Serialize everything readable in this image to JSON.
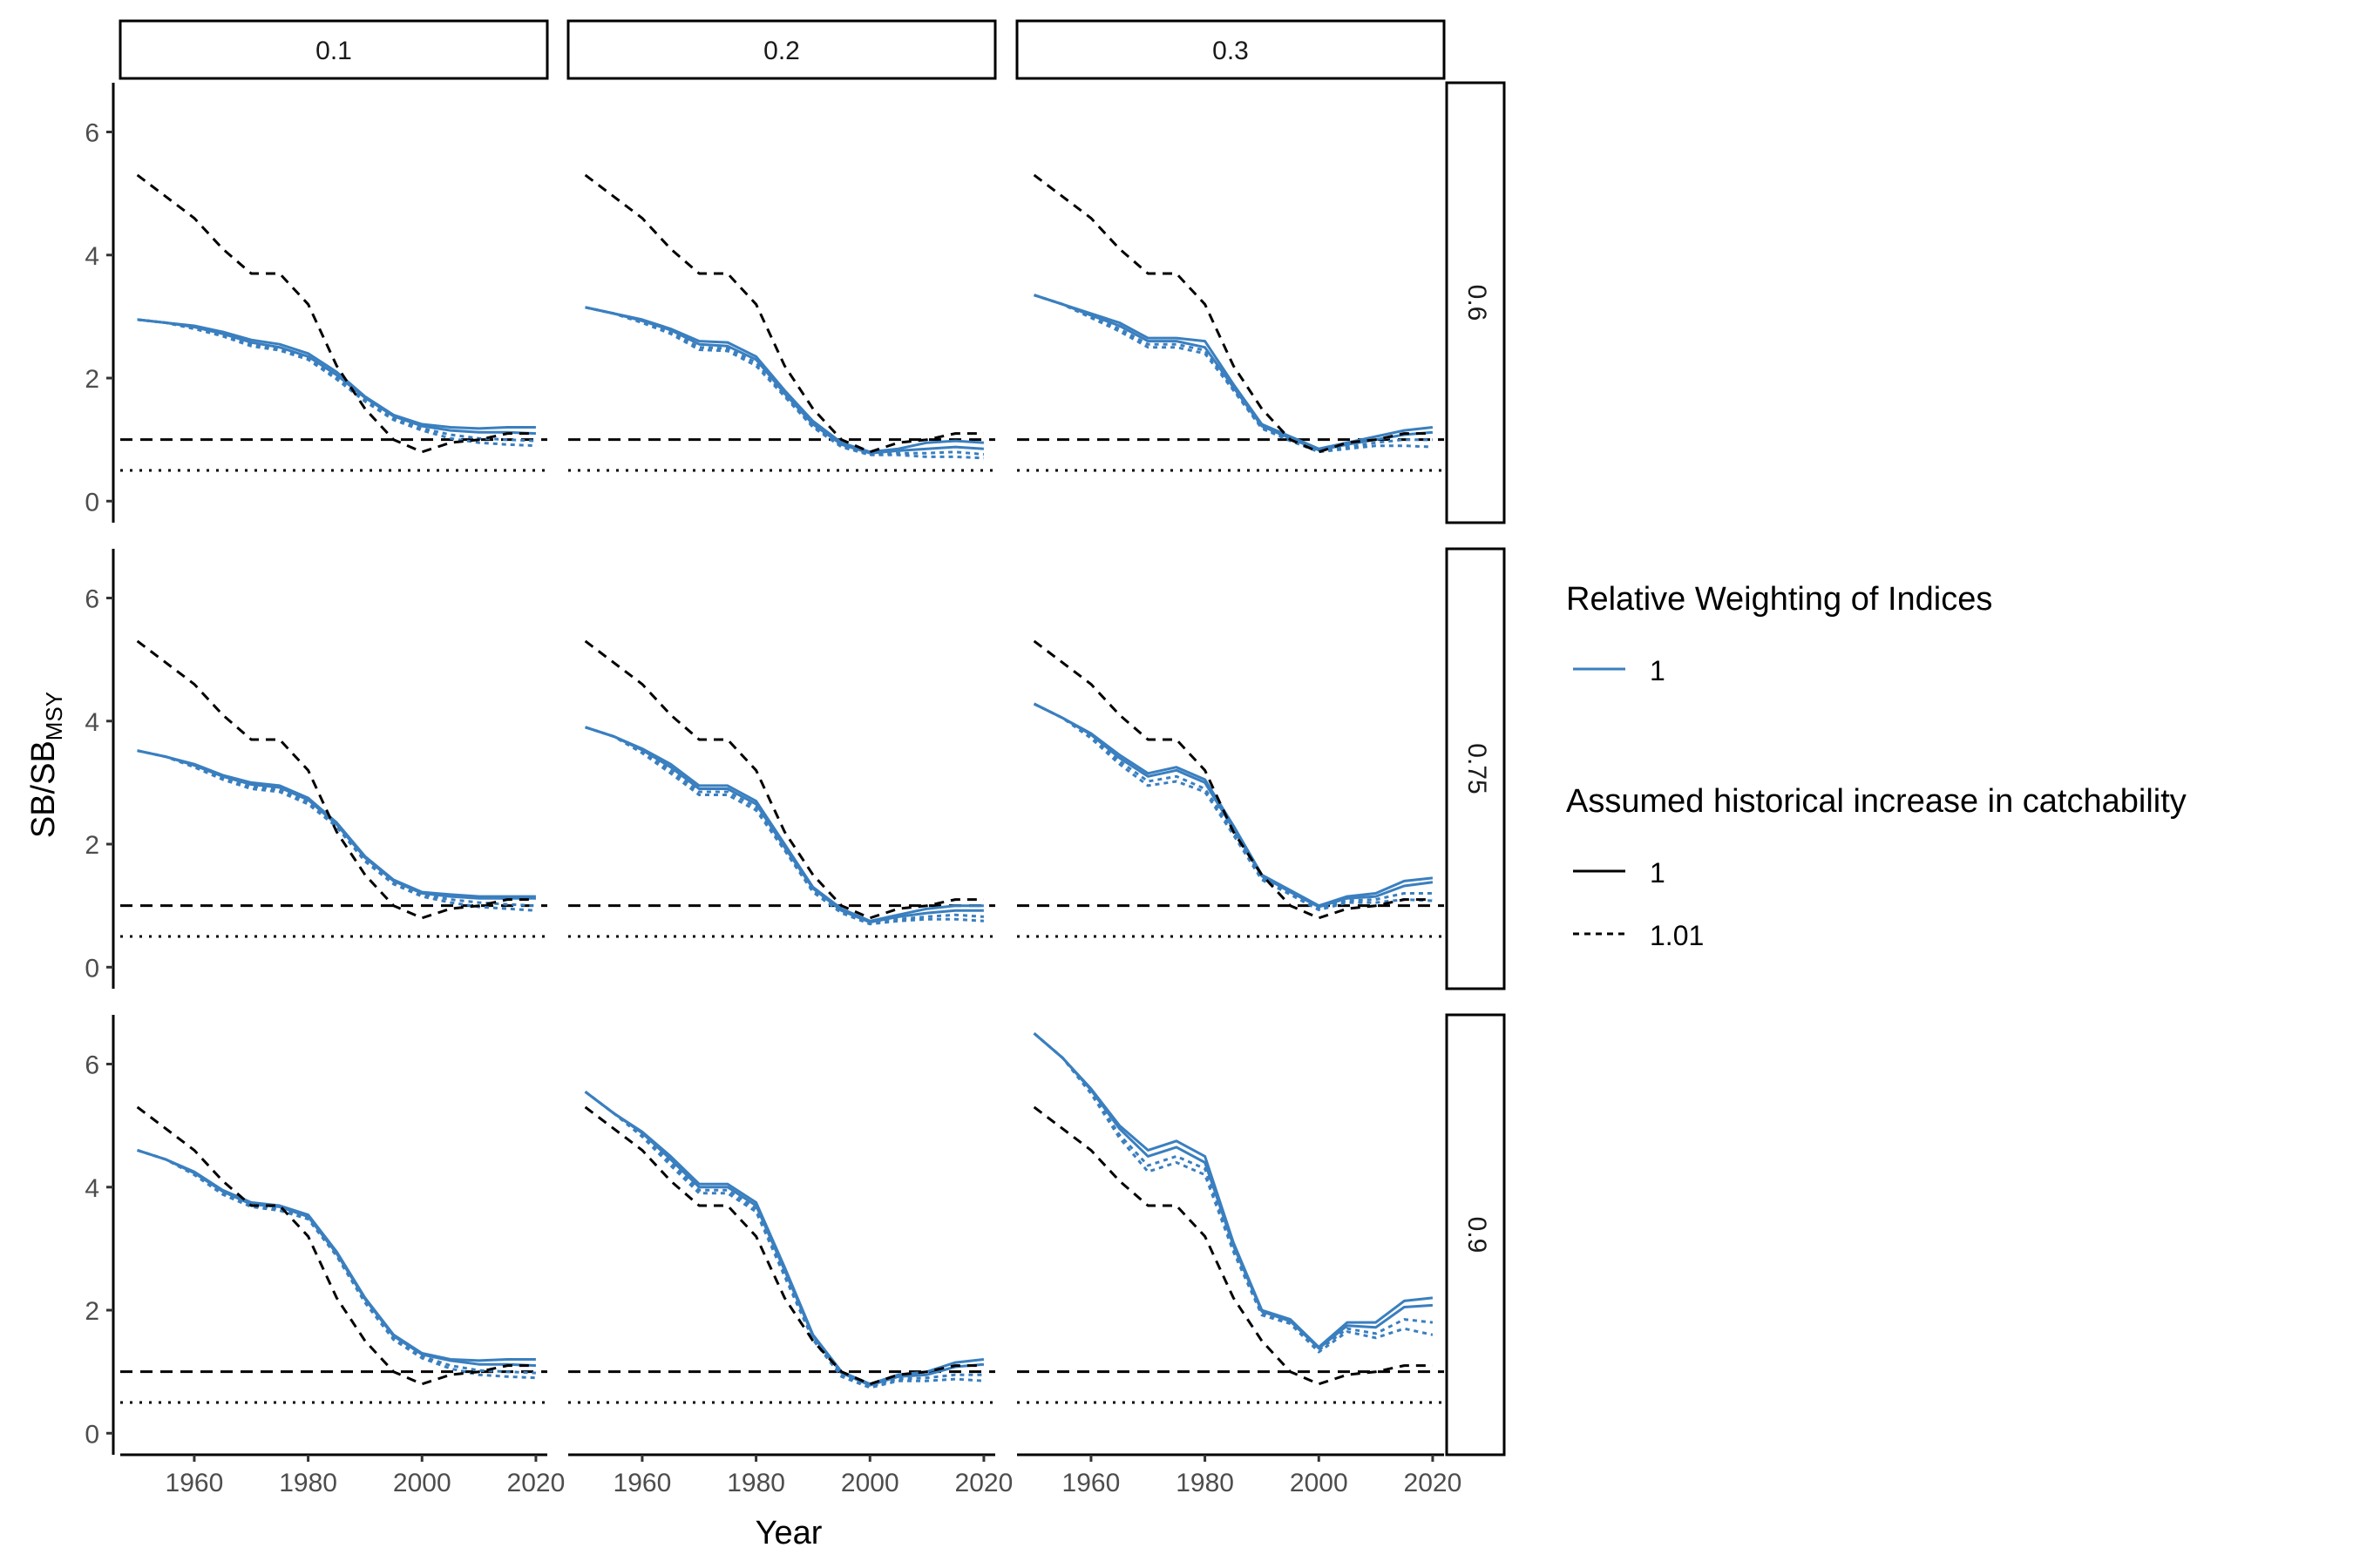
{
  "chart_data": {
    "type": "line",
    "layout": "facet-grid",
    "xlabel": "Year",
    "ylabel_main": "SB/SB",
    "ylabel_sub": "MSY",
    "xlim": [
      1947,
      2022
    ],
    "ylim": [
      -0.35,
      6.8
    ],
    "x_ticks": [
      1960,
      1980,
      2000,
      2020
    ],
    "y_ticks": [
      0,
      2,
      4,
      6
    ],
    "column_strips": [
      "0.1",
      "0.2",
      "0.3"
    ],
    "row_strips": [
      "0.6",
      "0.75",
      "0.9"
    ],
    "reference_lines": [
      {
        "y": 1.0,
        "style": "dashed"
      },
      {
        "y": 0.5,
        "style": "dotted"
      }
    ],
    "legend": {
      "placement": "right",
      "groups": [
        {
          "title": "Relative Weighting of Indices",
          "entries": [
            {
              "label": "1",
              "style": "solid",
              "color": "#3a7fbf"
            }
          ]
        },
        {
          "title": "Assumed historical increase in catchability",
          "entries": [
            {
              "label": "1",
              "style": "solid",
              "color": "#000000"
            },
            {
              "label": "1.01",
              "style": "dashed",
              "color": "#000000"
            }
          ]
        }
      ]
    },
    "colors": {
      "model": "#3a7fbf",
      "reference": "#000000",
      "strip_border": "#000000"
    },
    "reference_series": {
      "name": "",
      "style": "dashed",
      "x": [
        1950,
        1955,
        1960,
        1965,
        1970,
        1975,
        1980,
        1985,
        1990,
        1995,
        2000,
        2005,
        2010,
        2015,
        2020
      ],
      "y": [
        5.3,
        4.95,
        4.6,
        4.1,
        3.7,
        3.7,
        3.2,
        2.2,
        1.5,
        1.0,
        0.8,
        0.95,
        1.0,
        1.1,
        1.1
      ]
    },
    "model_series": {
      "x": [
        1950,
        1955,
        1960,
        1965,
        1970,
        1975,
        1980,
        1985,
        1990,
        1995,
        2000,
        2005,
        2010,
        2015,
        2020
      ],
      "panels": [
        {
          "row": "0.6",
          "col": "0.1",
          "solid": [
            [
              2.95,
              2.9,
              2.85,
              2.75,
              2.62,
              2.55,
              2.4,
              2.1,
              1.7,
              1.4,
              1.25,
              1.2,
              1.18,
              1.2,
              1.2
            ],
            [
              2.95,
              2.9,
              2.83,
              2.72,
              2.58,
              2.5,
              2.35,
              2.05,
              1.68,
              1.38,
              1.22,
              1.15,
              1.12,
              1.12,
              1.1
            ]
          ],
          "dotted": [
            [
              2.95,
              2.9,
              2.82,
              2.7,
              2.55,
              2.47,
              2.32,
              2.0,
              1.65,
              1.35,
              1.18,
              1.08,
              1.02,
              1.0,
              0.98
            ],
            [
              2.95,
              2.9,
              2.8,
              2.68,
              2.52,
              2.45,
              2.3,
              1.98,
              1.62,
              1.32,
              1.15,
              1.02,
              0.95,
              0.92,
              0.9
            ]
          ]
        },
        {
          "row": "0.6",
          "col": "0.2",
          "solid": [
            [
              3.15,
              3.05,
              2.95,
              2.8,
              2.6,
              2.58,
              2.35,
              1.8,
              1.3,
              0.95,
              0.8,
              0.85,
              0.95,
              0.98,
              0.95
            ],
            [
              3.15,
              3.05,
              2.93,
              2.78,
              2.55,
              2.52,
              2.3,
              1.75,
              1.25,
              0.92,
              0.78,
              0.82,
              0.85,
              0.88,
              0.85
            ]
          ],
          "dotted": [
            [
              3.15,
              3.05,
              2.92,
              2.75,
              2.5,
              2.48,
              2.25,
              1.72,
              1.22,
              0.9,
              0.76,
              0.78,
              0.78,
              0.8,
              0.76
            ],
            [
              3.15,
              3.05,
              2.9,
              2.72,
              2.46,
              2.44,
              2.2,
              1.7,
              1.2,
              0.88,
              0.75,
              0.75,
              0.72,
              0.72,
              0.7
            ]
          ]
        },
        {
          "row": "0.6",
          "col": "0.3",
          "solid": [
            [
              3.35,
              3.2,
              3.05,
              2.9,
              2.65,
              2.65,
              2.6,
              1.9,
              1.25,
              1.05,
              0.85,
              0.95,
              1.05,
              1.15,
              1.2
            ],
            [
              3.35,
              3.2,
              3.02,
              2.85,
              2.6,
              2.6,
              2.5,
              1.85,
              1.22,
              1.02,
              0.83,
              0.92,
              1.0,
              1.08,
              1.12
            ]
          ],
          "dotted": [
            [
              3.35,
              3.2,
              3.0,
              2.8,
              2.55,
              2.55,
              2.45,
              1.82,
              1.2,
              1.0,
              0.82,
              0.88,
              0.95,
              1.0,
              1.0
            ],
            [
              3.35,
              3.2,
              2.98,
              2.76,
              2.5,
              2.5,
              2.4,
              1.8,
              1.18,
              0.98,
              0.8,
              0.85,
              0.9,
              0.9,
              0.88
            ]
          ]
        },
        {
          "row": "0.75",
          "col": "0.1",
          "solid": [
            [
              3.52,
              3.42,
              3.3,
              3.12,
              3.0,
              2.95,
              2.75,
              2.35,
              1.8,
              1.42,
              1.22,
              1.18,
              1.15,
              1.15,
              1.15
            ],
            [
              3.52,
              3.42,
              3.28,
              3.1,
              2.97,
              2.92,
              2.72,
              2.32,
              1.78,
              1.4,
              1.2,
              1.15,
              1.12,
              1.12,
              1.12
            ]
          ],
          "dotted": [
            [
              3.52,
              3.42,
              3.27,
              3.08,
              2.94,
              2.88,
              2.68,
              2.3,
              1.75,
              1.38,
              1.18,
              1.1,
              1.05,
              1.02,
              1.0
            ],
            [
              3.52,
              3.42,
              3.25,
              3.05,
              2.9,
              2.85,
              2.65,
              2.28,
              1.72,
              1.35,
              1.15,
              1.05,
              0.98,
              0.95,
              0.92
            ]
          ]
        },
        {
          "row": "0.75",
          "col": "0.2",
          "solid": [
            [
              3.9,
              3.75,
              3.55,
              3.3,
              2.95,
              2.95,
              2.7,
              2.0,
              1.3,
              0.95,
              0.75,
              0.85,
              0.95,
              1.0,
              1.0
            ],
            [
              3.9,
              3.75,
              3.53,
              3.25,
              2.9,
              2.9,
              2.65,
              1.95,
              1.28,
              0.92,
              0.73,
              0.82,
              0.88,
              0.92,
              0.92
            ]
          ],
          "dotted": [
            [
              3.9,
              3.75,
              3.5,
              3.2,
              2.85,
              2.85,
              2.6,
              1.92,
              1.25,
              0.9,
              0.72,
              0.78,
              0.82,
              0.85,
              0.82
            ],
            [
              3.9,
              3.75,
              3.48,
              3.15,
              2.8,
              2.8,
              2.55,
              1.9,
              1.22,
              0.88,
              0.7,
              0.75,
              0.78,
              0.78,
              0.75
            ]
          ]
        },
        {
          "row": "0.75",
          "col": "0.3",
          "solid": [
            [
              4.28,
              4.05,
              3.8,
              3.45,
              3.15,
              3.25,
              3.05,
              2.3,
              1.5,
              1.25,
              1.0,
              1.15,
              1.2,
              1.4,
              1.45
            ],
            [
              4.28,
              4.05,
              3.78,
              3.4,
              3.1,
              3.2,
              3.0,
              2.25,
              1.48,
              1.22,
              0.98,
              1.12,
              1.15,
              1.32,
              1.38
            ]
          ],
          "dotted": [
            [
              4.28,
              4.05,
              3.75,
              3.35,
              3.02,
              3.1,
              2.9,
              2.2,
              1.45,
              1.2,
              0.95,
              1.08,
              1.1,
              1.2,
              1.2
            ],
            [
              4.28,
              4.05,
              3.72,
              3.3,
              2.95,
              3.02,
              2.85,
              2.15,
              1.42,
              1.18,
              0.93,
              1.05,
              1.05,
              1.1,
              1.08
            ]
          ]
        },
        {
          "row": "0.9",
          "col": "0.1",
          "solid": [
            [
              4.6,
              4.45,
              4.25,
              3.95,
              3.75,
              3.7,
              3.55,
              2.95,
              2.2,
              1.6,
              1.3,
              1.2,
              1.18,
              1.2,
              1.2
            ],
            [
              4.6,
              4.45,
              4.23,
              3.93,
              3.72,
              3.68,
              3.52,
              2.92,
              2.18,
              1.58,
              1.28,
              1.18,
              1.12,
              1.12,
              1.1
            ]
          ],
          "dotted": [
            [
              4.6,
              4.45,
              4.22,
              3.9,
              3.7,
              3.65,
              3.5,
              2.9,
              2.15,
              1.55,
              1.25,
              1.1,
              1.02,
              1.0,
              0.98
            ],
            [
              4.6,
              4.45,
              4.2,
              3.88,
              3.68,
              3.62,
              3.48,
              2.88,
              2.12,
              1.52,
              1.22,
              1.05,
              0.95,
              0.92,
              0.9
            ]
          ]
        },
        {
          "row": "0.9",
          "col": "0.2",
          "solid": [
            [
              5.55,
              5.2,
              4.9,
              4.5,
              4.05,
              4.05,
              3.75,
              2.7,
              1.6,
              1.0,
              0.8,
              0.95,
              1.0,
              1.15,
              1.2
            ],
            [
              5.55,
              5.2,
              4.88,
              4.45,
              4.0,
              4.0,
              3.7,
              2.65,
              1.58,
              0.98,
              0.78,
              0.92,
              0.95,
              1.08,
              1.12
            ]
          ],
          "dotted": [
            [
              5.55,
              5.2,
              4.85,
              4.4,
              3.95,
              3.95,
              3.65,
              2.6,
              1.55,
              0.95,
              0.76,
              0.88,
              0.9,
              0.95,
              0.95
            ],
            [
              5.55,
              5.2,
              4.82,
              4.35,
              3.9,
              3.9,
              3.6,
              2.55,
              1.52,
              0.92,
              0.74,
              0.85,
              0.85,
              0.88,
              0.85
            ]
          ]
        },
        {
          "row": "0.9",
          "col": "0.3",
          "solid": [
            [
              6.5,
              6.1,
              5.6,
              5.0,
              4.6,
              4.75,
              4.5,
              3.1,
              2.0,
              1.85,
              1.4,
              1.8,
              1.8,
              2.15,
              2.2
            ],
            [
              6.5,
              6.1,
              5.58,
              4.95,
              4.5,
              4.65,
              4.4,
              3.05,
              1.98,
              1.82,
              1.38,
              1.75,
              1.72,
              2.05,
              2.08
            ]
          ],
          "dotted": [
            [
              6.5,
              6.1,
              5.55,
              4.85,
              4.35,
              4.5,
              4.3,
              3.0,
              1.95,
              1.8,
              1.35,
              1.7,
              1.62,
              1.85,
              1.8
            ],
            [
              6.5,
              6.1,
              5.52,
              4.8,
              4.25,
              4.4,
              4.2,
              2.95,
              1.92,
              1.78,
              1.32,
              1.65,
              1.55,
              1.7,
              1.6
            ]
          ]
        }
      ]
    }
  }
}
